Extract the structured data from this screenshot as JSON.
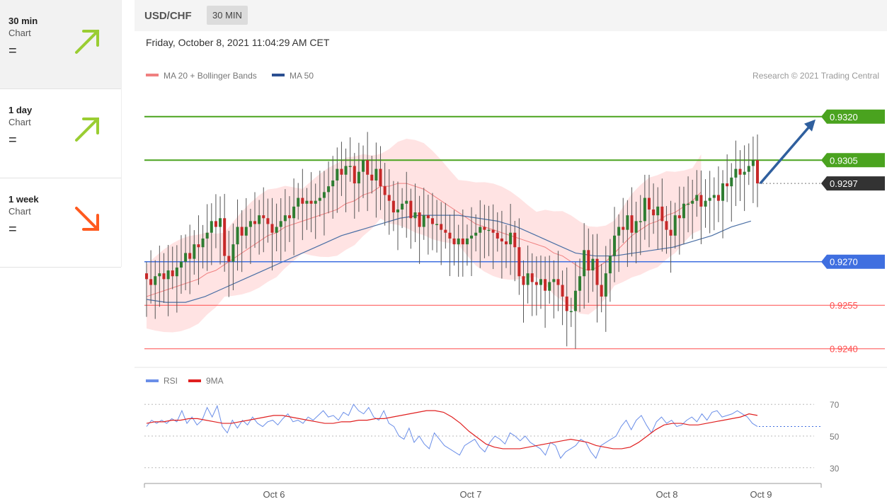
{
  "sidebar": {
    "items": [
      {
        "title": "30 min",
        "subtitle": "Chart",
        "status": "=",
        "direction": "up",
        "color": "#9acd32"
      },
      {
        "title": "1 day",
        "subtitle": "Chart",
        "status": "=",
        "direction": "up",
        "color": "#9acd32"
      },
      {
        "title": "1 week",
        "subtitle": "Chart",
        "status": "=",
        "direction": "down",
        "color": "#ff5a1f"
      }
    ]
  },
  "header": {
    "pair": "USD/CHF",
    "interval": "30 MIN"
  },
  "timestamp": "Friday, October 8, 2021 11:04:29 AM CET",
  "legend": {
    "ma20": "MA 20 + Bollinger Bands",
    "ma50": "MA 50",
    "copyright": "Research © 2021 Trading Central",
    "rsi": "RSI",
    "rsi_ma": "9MA"
  },
  "colors": {
    "resistance": "#4aa31f",
    "support": "#3f6fe0",
    "minor": "#ff4d4d",
    "current": "#333333",
    "ma20": "#f08080",
    "ma50": "#4a6fa5",
    "bull": "#2e7d32",
    "bear": "#c62828"
  },
  "chart_data": [
    {
      "type": "candlestick",
      "title": "USD/CHF",
      "ylim": [
        0.9237,
        0.9328
      ],
      "x_ticks": [
        "Oct 6",
        "Oct 7",
        "Oct 8",
        "Oct 9"
      ],
      "levels": [
        {
          "value": 0.932,
          "label": "0.9320",
          "kind": "resistance"
        },
        {
          "value": 0.9305,
          "label": "0.9305",
          "kind": "resistance"
        },
        {
          "value": 0.9297,
          "label": "0.9297",
          "kind": "current"
        },
        {
          "value": 0.927,
          "label": "0.9270",
          "kind": "support"
        },
        {
          "value": 0.9255,
          "label": "0.9255",
          "kind": "minor"
        },
        {
          "value": 0.924,
          "label": "0.9240",
          "kind": "minor"
        }
      ],
      "close_series": [
        0.9264,
        0.9262,
        0.9265,
        0.9266,
        0.9264,
        0.9267,
        0.9265,
        0.9268,
        0.927,
        0.9273,
        0.9271,
        0.9276,
        0.9275,
        0.9278,
        0.928,
        0.9284,
        0.9282,
        0.9285,
        0.9272,
        0.927,
        0.9276,
        0.9282,
        0.9279,
        0.9282,
        0.9284,
        0.9283,
        0.9286,
        0.9285,
        0.9283,
        0.928,
        0.9282,
        0.9284,
        0.9286,
        0.9285,
        0.9289,
        0.9292,
        0.929,
        0.9291,
        0.929,
        0.9291,
        0.9292,
        0.9294,
        0.9296,
        0.9298,
        0.9302,
        0.93,
        0.9303,
        0.9303,
        0.9297,
        0.9301,
        0.9305,
        0.93,
        0.9298,
        0.9302,
        0.9296,
        0.9293,
        0.9291,
        0.9287,
        0.9288,
        0.929,
        0.9291,
        0.9285,
        0.9287,
        0.9282,
        0.9286,
        0.9285,
        0.9283,
        0.9283,
        0.9281,
        0.928,
        0.9278,
        0.9276,
        0.9278,
        0.9276,
        0.9278,
        0.9279,
        0.928,
        0.9282,
        0.9281,
        0.9281,
        0.928,
        0.9278,
        0.9277,
        0.9276,
        0.928,
        0.9275,
        0.9265,
        0.9262,
        0.9266,
        0.9263,
        0.9262,
        0.9264,
        0.926,
        0.9263,
        0.9264,
        0.9262,
        0.9258,
        0.9253,
        0.9253,
        0.926,
        0.9265,
        0.9274,
        0.9267,
        0.9271,
        0.9262,
        0.9258,
        0.9266,
        0.9272,
        0.9279,
        0.9282,
        0.9281,
        0.9286,
        0.928,
        0.9284,
        0.9284,
        0.9292,
        0.9288,
        0.9286,
        0.9289,
        0.9284,
        0.9281,
        0.9279,
        0.9286,
        0.9285,
        0.929,
        0.929,
        0.9291,
        0.9293,
        0.9289,
        0.9291,
        0.9292,
        0.9293,
        0.9291,
        0.9297,
        0.9296,
        0.9299,
        0.9302,
        0.93,
        0.9301,
        0.9303,
        0.9305,
        0.9297
      ],
      "ma20_series": [
        0.9258,
        0.9259,
        0.926,
        0.9261,
        0.9262,
        0.9263,
        0.9264,
        0.9266,
        0.9267,
        0.9269,
        0.9271,
        0.9273,
        0.9275,
        0.9277,
        0.9279,
        0.928,
        0.9282,
        0.9283,
        0.9284,
        0.9285,
        0.9286,
        0.9287,
        0.9288,
        0.929,
        0.9291,
        0.9293,
        0.9294,
        0.9296,
        0.9296,
        0.9297,
        0.9297,
        0.9296,
        0.9295,
        0.9293,
        0.9291,
        0.9289,
        0.9287,
        0.9285,
        0.9283,
        0.9282,
        0.9281,
        0.928,
        0.9279,
        0.9278,
        0.9277,
        0.9276,
        0.9275,
        0.9273,
        0.9272,
        0.927,
        0.9268,
        0.9267,
        0.9268,
        0.927,
        0.9273,
        0.9276,
        0.9279,
        0.9281,
        0.9283,
        0.9284,
        0.9286,
        0.9287,
        0.9289,
        0.9291,
        0.9294
      ],
      "ma20_sample_every": 2,
      "ma50_series": [
        0.9257,
        0.9256,
        0.9256,
        0.9258,
        0.9261,
        0.9264,
        0.9267,
        0.927,
        0.9273,
        0.9276,
        0.9279,
        0.9281,
        0.9283,
        0.9285,
        0.9286,
        0.9286,
        0.9286,
        0.9285,
        0.9284,
        0.9282,
        0.9279,
        0.9276,
        0.9273,
        0.9272,
        0.9272,
        0.9273,
        0.9274,
        0.9275,
        0.9277,
        0.9279,
        0.9282,
        0.9284
      ],
      "ma50_sample_every": 4.5
    },
    {
      "type": "line",
      "title": "",
      "ylim": [
        25,
        75
      ],
      "y_ticks": [
        70,
        50,
        30
      ],
      "series": [
        {
          "name": "RSI",
          "values": [
            56,
            60,
            58,
            60,
            58,
            61,
            59,
            66,
            58,
            62,
            57,
            60,
            68,
            62,
            69,
            56,
            52,
            60,
            55,
            60,
            57,
            62,
            58,
            56,
            59,
            60,
            57,
            61,
            64,
            59,
            60,
            58,
            62,
            60,
            63,
            66,
            62,
            63,
            60,
            65,
            63,
            70,
            66,
            64,
            68,
            62,
            60,
            66,
            58,
            56,
            50,
            48,
            55,
            46,
            50,
            45,
            42,
            52,
            48,
            44,
            42,
            40,
            38,
            44,
            46,
            48,
            43,
            40,
            46,
            50,
            48,
            45,
            52,
            50,
            47,
            50,
            46,
            44,
            42,
            38,
            46,
            44,
            36,
            40,
            42,
            44,
            48,
            46,
            40,
            36,
            44,
            46,
            48,
            50,
            56,
            60,
            54,
            60,
            63,
            57,
            52,
            59,
            62,
            58,
            60,
            56,
            57,
            60,
            62,
            59,
            64,
            60,
            65,
            66,
            62,
            63,
            64,
            66,
            64,
            62,
            58,
            56
          ]
        },
        {
          "name": "9MA",
          "values": [
            58,
            59,
            59,
            60,
            60,
            61,
            61,
            60,
            59,
            58,
            58,
            59,
            60,
            61,
            62,
            63,
            63,
            62,
            61,
            60,
            59,
            58,
            58,
            59,
            59,
            60,
            60,
            61,
            61,
            62,
            63,
            64,
            65,
            66,
            66,
            65,
            62,
            58,
            53,
            49,
            45,
            43,
            42,
            42,
            42,
            43,
            44,
            45,
            46,
            47,
            48,
            47,
            46,
            44,
            43,
            42,
            42,
            43,
            46,
            50,
            54,
            57,
            58,
            58,
            57,
            57,
            58,
            59,
            60,
            61,
            62,
            64,
            63
          ]
        }
      ]
    }
  ]
}
